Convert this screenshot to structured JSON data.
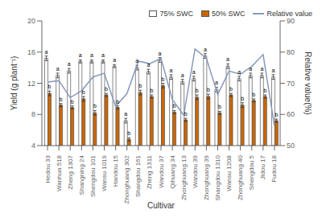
{
  "chart_data": {
    "type": "bar",
    "xlabel": "Cultivar",
    "ylabel": "Yield (g plant⁻¹)",
    "y2label": "Relative value(%)",
    "categories": [
      "Hedou 33",
      "Wanhua 518",
      "Zheng 1307",
      "Shangning 24",
      "Shengdou 101",
      "Wansu 1019",
      "Handou 15",
      "Zhonghuang 302",
      "Shangdou 161",
      "Zheng 1311",
      "Wandou 37",
      "Qihuang 34",
      "Zhonghuang 13",
      "Wandou 39",
      "Zhonghuang 39",
      "Shangdou 1310",
      "Wansu 1208",
      "Zhonghuang 40",
      "Shengdou 5",
      "Jidou 17",
      "Fudou 18"
    ],
    "series": [
      {
        "name": "75% SWC",
        "type": "bar",
        "color": "#FFFFFF",
        "values": [
          15.2,
          13.0,
          13.6,
          14.8,
          14.8,
          14.8,
          14.2,
          7.2,
          14.0,
          13.5,
          15.0,
          12.8,
          12.2,
          12.6,
          15.5,
          11.2,
          14.2,
          12.6,
          13.0,
          13.0,
          12.8
        ],
        "errors": [
          0.3,
          0.3,
          0.3,
          0.2,
          0.2,
          0.2,
          0.2,
          0.3,
          0.3,
          0.3,
          0.3,
          0.3,
          0.3,
          0.3,
          0.3,
          0.3,
          0.3,
          0.3,
          0.3,
          0.3,
          0.3
        ],
        "annotations": [
          "a",
          "a",
          "a",
          "a",
          "a",
          "a",
          "a",
          "a",
          "a",
          "a",
          "a",
          "a",
          "a",
          "a",
          "a",
          "a",
          "a",
          "a",
          "a",
          "a",
          "a"
        ]
      },
      {
        "name": "50% SWC",
        "type": "bar",
        "color": "#CC6600",
        "values": [
          10.7,
          9.2,
          8.9,
          10.0,
          8.2,
          10.5,
          8.9,
          4.8,
          10.8,
          10.3,
          11.7,
          8.3,
          7.3,
          10.2,
          10.3,
          8.2,
          10.5,
          9.2,
          9.8,
          10.3,
          7.2
        ],
        "errors": [
          0.3,
          0.2,
          0.2,
          0.3,
          0.3,
          0.2,
          0.2,
          0.2,
          0.3,
          0.2,
          0.3,
          0.2,
          0.2,
          0.3,
          0.3,
          0.2,
          0.2,
          0.3,
          0.2,
          0.2,
          0.2
        ],
        "annotations": [
          "b",
          "b",
          "b",
          "b",
          "b",
          "b",
          "b",
          "b",
          "b",
          "b",
          "b",
          "b",
          "b",
          "b",
          "b",
          "b",
          "b",
          "b",
          "b",
          "b",
          "b"
        ]
      },
      {
        "name": "Relative value",
        "type": "line",
        "axis": "y2",
        "color": "#8899bb",
        "values": [
          70.4,
          70.8,
          65.4,
          67.6,
          72.0,
          73.2,
          62.6,
          66.7,
          77.1,
          76.3,
          78.0,
          64.8,
          59.8,
          81.0,
          78.0,
          66.4,
          73.9,
          72.9,
          75.4,
          79.2,
          56.3
        ]
      }
    ],
    "ylim": [
      4,
      20
    ],
    "yticks": [
      4,
      8,
      12,
      16,
      20
    ],
    "y2lim": [
      50,
      90
    ],
    "y2ticks": [
      50,
      60,
      70,
      80,
      90
    ],
    "grid": false,
    "legend": "upper right"
  }
}
